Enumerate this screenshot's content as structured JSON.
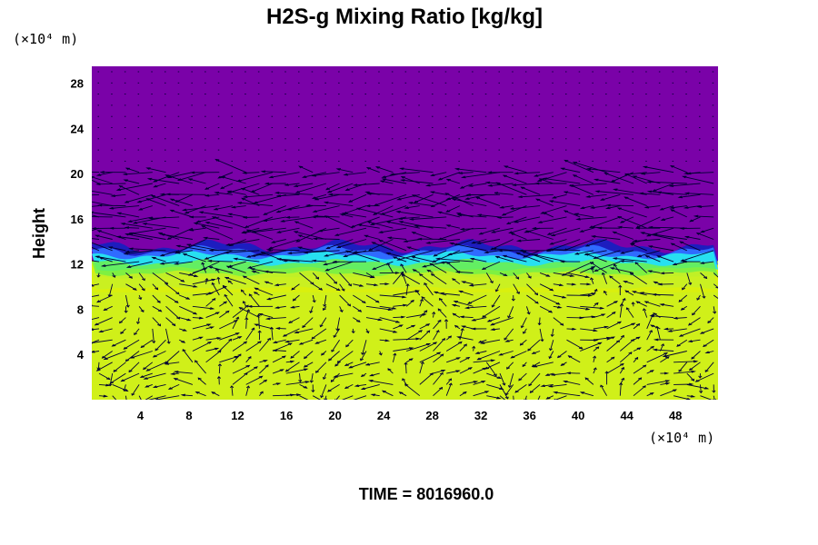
{
  "chart_data": {
    "type": "heatmap",
    "title": "H2S-g Mixing Ratio [kg/kg]",
    "ylabel": "Height",
    "y_unit": "(×10⁴ m)",
    "x_unit": "(×10⁴ m)",
    "x_ticks": [
      4,
      8,
      12,
      16,
      20,
      24,
      28,
      32,
      36,
      40,
      44,
      48
    ],
    "y_ticks": [
      4,
      8,
      12,
      16,
      20,
      24,
      28
    ],
    "xlim": [
      0,
      51.5
    ],
    "ylim": [
      0,
      29.5
    ],
    "time_label": "TIME = 8016960.0",
    "colors": {
      "upper": "#7a02a8",
      "band_dark": "#1d1dbf",
      "band_blue": "#2f6bff",
      "band_cyan": "#27e0f0",
      "band_green": "#6ef04a",
      "lower": "#d9f00e",
      "lower_alt": "#c8f024",
      "arrows": "#000033"
    },
    "interface_height": 12.3,
    "vectors": true
  }
}
